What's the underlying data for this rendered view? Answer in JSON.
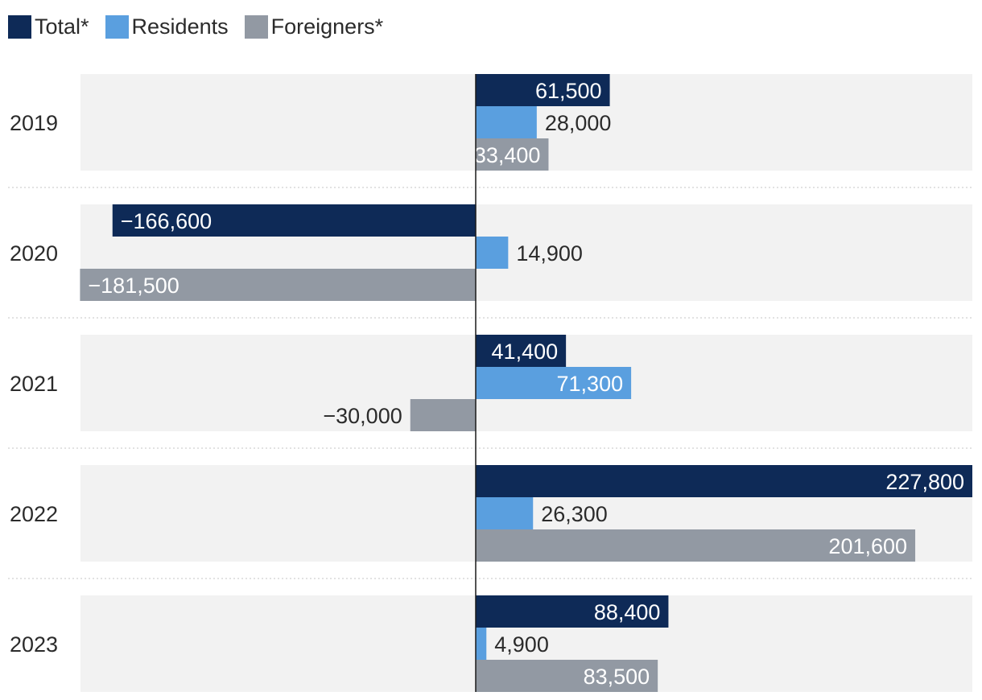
{
  "chart_data": {
    "type": "bar",
    "orientation": "horizontal",
    "categories": [
      "2019",
      "2020",
      "2021",
      "2022",
      "2023"
    ],
    "series": [
      {
        "name": "Total*",
        "color": "#0e2a57",
        "values": [
          61500,
          -166600,
          41400,
          227800,
          88400
        ],
        "labels": [
          "61,500",
          "−166,600",
          "41,400",
          "227,800",
          "88,400"
        ]
      },
      {
        "name": "Residents",
        "color": "#5a9fdf",
        "values": [
          28000,
          14900,
          71300,
          26300,
          4900
        ],
        "labels": [
          "28,000",
          "14,900",
          "71,300",
          "26,300",
          "4,900"
        ]
      },
      {
        "name": "Foreigners*",
        "color": "#9299a3",
        "values": [
          33400,
          -181500,
          -30000,
          201600,
          83500
        ],
        "labels": [
          "33,400",
          "−181,500",
          "−30,000",
          "201,600",
          "83,500"
        ]
      }
    ],
    "xlim": [
      -181500,
      227800
    ],
    "grid": false,
    "legend_position": "top-left",
    "title": "",
    "xlabel": "",
    "ylabel": ""
  }
}
